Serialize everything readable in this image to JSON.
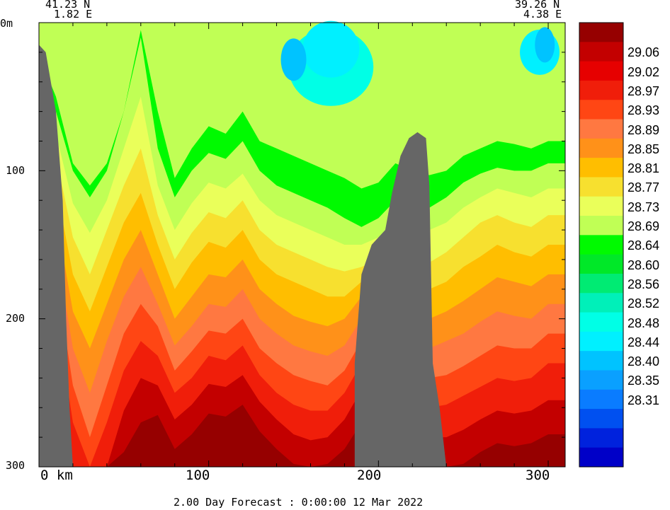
{
  "corner_left": {
    "lat": "41.23 N",
    "lon": "1.82 E"
  },
  "corner_right": {
    "lat": "39.26 N",
    "lon": "4.38 E"
  },
  "footer": "2.00 Day Forecast :  0:00:00  12 Mar 2022",
  "colors": {
    "land": "#666666",
    "scale": [
      "#0000c8",
      "#0022dd",
      "#0050f0",
      "#0a7cff",
      "#0aa0ff",
      "#00c3ff",
      "#00f0ff",
      "#00ffe6",
      "#00f0b9",
      "#00eb73",
      "#00e828",
      "#00fa00",
      "#c0ff55",
      "#eaff5a",
      "#f7e02f",
      "#ffbe00",
      "#ff9119",
      "#ff7841",
      "#ff4614",
      "#f01e0a",
      "#e60000",
      "#c30000",
      "#960000"
    ]
  },
  "chart_data": {
    "type": "heatmap",
    "title": "",
    "xlabel": "",
    "ylabel": "",
    "x_unit": "km",
    "y_unit": "m",
    "xlim": [
      0,
      310
    ],
    "ylim": [
      0,
      300
    ],
    "x_ticks": [
      {
        "value": 0,
        "label": "0 km"
      },
      {
        "value": 100,
        "label": "100"
      },
      {
        "value": 200,
        "label": "200"
      },
      {
        "value": 300,
        "label": "300"
      }
    ],
    "y_ticks": [
      {
        "value": 0,
        "label": "0m"
      },
      {
        "value": 100,
        "label": "100"
      },
      {
        "value": 200,
        "label": "200"
      },
      {
        "value": 300,
        "label": "300"
      }
    ],
    "colorbar_labels": [
      "29.06",
      "29.02",
      "28.97",
      "28.93",
      "28.89",
      "28.85",
      "28.81",
      "28.77",
      "28.73",
      "28.69",
      "28.64",
      "28.60",
      "28.56",
      "28.52",
      "28.48",
      "28.44",
      "28.40",
      "28.35",
      "28.31"
    ],
    "isoline_x": [
      0,
      10,
      20,
      30,
      40,
      50,
      60,
      70,
      80,
      90,
      100,
      110,
      120,
      130,
      140,
      150,
      160,
      170,
      180,
      190,
      200,
      210,
      220,
      230,
      240,
      250,
      260,
      270,
      280,
      290,
      300,
      310
    ],
    "isolines": [
      {
        "value": 28.6,
        "depths": [
          22,
          50,
          95,
          110,
          95,
          60,
          5,
          60,
          105,
          85,
          70,
          75,
          60,
          80,
          85,
          90,
          95,
          100,
          105,
          112,
          108,
          95,
          100,
          103,
          100,
          90,
          85,
          80,
          82,
          85,
          80,
          80
        ]
      },
      {
        "value": 28.69,
        "depths": [
          25,
          60,
          100,
          118,
          100,
          60,
          10,
          85,
          118,
          100,
          88,
          92,
          80,
          100,
          110,
          115,
          120,
          125,
          132,
          138,
          132,
          120,
          125,
          125,
          118,
          108,
          102,
          98,
          100,
          100,
          95,
          95
        ]
      },
      {
        "value": 28.73,
        "depths": [
          28,
          75,
          122,
          142,
          120,
          85,
          50,
          110,
          140,
          122,
          108,
          112,
          102,
          120,
          130,
          135,
          140,
          145,
          150,
          150,
          145,
          140,
          145,
          140,
          135,
          125,
          118,
          112,
          115,
          118,
          112,
          112
        ]
      },
      {
        "value": 28.77,
        "depths": [
          30,
          90,
          145,
          170,
          140,
          110,
          85,
          130,
          160,
          142,
          128,
          132,
          120,
          140,
          150,
          155,
          160,
          165,
          168,
          165,
          160,
          160,
          165,
          162,
          155,
          145,
          135,
          130,
          135,
          138,
          130,
          130
        ]
      },
      {
        "value": 28.81,
        "depths": [
          30,
          110,
          170,
          195,
          165,
          135,
          115,
          150,
          180,
          162,
          148,
          152,
          140,
          160,
          170,
          175,
          180,
          185,
          185,
          175,
          170,
          175,
          182,
          180,
          175,
          165,
          158,
          150,
          155,
          158,
          150,
          150
        ]
      },
      {
        "value": 28.85,
        "depths": [
          30,
          130,
          195,
          220,
          190,
          160,
          140,
          170,
          200,
          185,
          170,
          172,
          160,
          180,
          190,
          198,
          202,
          205,
          200,
          185,
          180,
          190,
          200,
          200,
          195,
          188,
          180,
          172,
          175,
          178,
          170,
          170
        ]
      },
      {
        "value": 28.89,
        "depths": [
          30,
          150,
          220,
          250,
          215,
          185,
          165,
          190,
          218,
          205,
          190,
          192,
          180,
          200,
          210,
          218,
          222,
          225,
          218,
          200,
          195,
          205,
          218,
          220,
          215,
          210,
          202,
          195,
          198,
          200,
          190,
          190
        ]
      },
      {
        "value": 28.93,
        "depths": [
          30,
          170,
          245,
          280,
          245,
          210,
          190,
          205,
          235,
          222,
          208,
          210,
          200,
          220,
          230,
          238,
          242,
          245,
          235,
          215,
          210,
          222,
          238,
          240,
          238,
          232,
          225,
          218,
          220,
          220,
          210,
          210
        ]
      },
      {
        "value": 28.97,
        "depths": [
          30,
          195,
          270,
          300,
          270,
          235,
          215,
          225,
          250,
          240,
          225,
          228,
          218,
          238,
          250,
          258,
          262,
          262,
          250,
          230,
          225,
          238,
          255,
          260,
          258,
          252,
          246,
          240,
          242,
          240,
          230,
          230
        ]
      },
      {
        "value": 29.02,
        "depths": [
          30,
          220,
          300,
          300,
          300,
          262,
          240,
          245,
          268,
          258,
          244,
          246,
          238,
          256,
          268,
          278,
          282,
          280,
          268,
          248,
          242,
          256,
          272,
          280,
          280,
          275,
          268,
          262,
          264,
          262,
          255,
          255
        ]
      },
      {
        "value": 29.06,
        "depths": [
          30,
          250,
          300,
          300,
          300,
          290,
          270,
          265,
          288,
          278,
          264,
          266,
          258,
          276,
          288,
          298,
          300,
          298,
          288,
          270,
          262,
          276,
          292,
          300,
          300,
          298,
          290,
          284,
          286,
          284,
          278,
          278
        ]
      }
    ],
    "land_profile": {
      "x": [
        0,
        5,
        10,
        15,
        20,
        25,
        30,
        35,
        40,
        45,
        50,
        55,
        60,
        180,
        185,
        190,
        195,
        200,
        205,
        210,
        215,
        220,
        225,
        230,
        235,
        240,
        245
      ],
      "depth": [
        300,
        0,
        20,
        60,
        110,
        170,
        230,
        300,
        300,
        300,
        300,
        300,
        300,
        300,
        240,
        200,
        170,
        150,
        140,
        120,
        90,
        70,
        65,
        70,
        90,
        200,
        300
      ]
    }
  }
}
